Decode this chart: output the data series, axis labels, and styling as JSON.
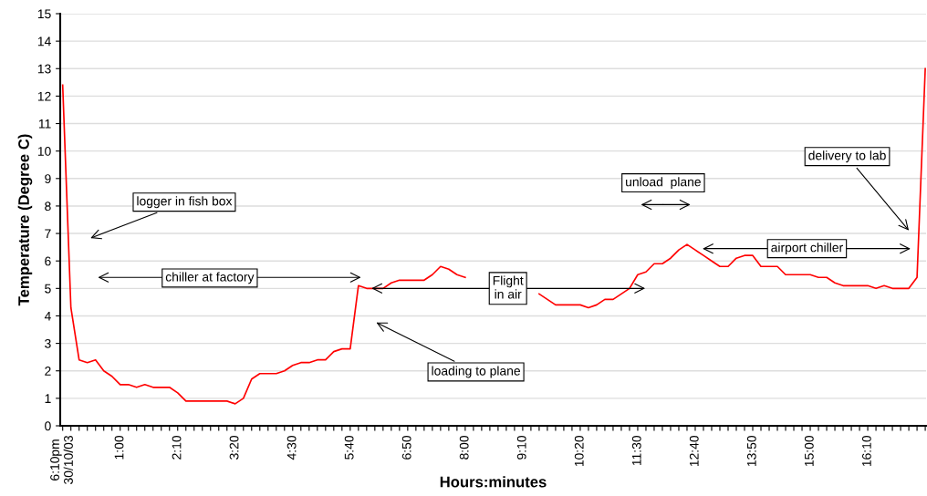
{
  "chart_data": {
    "type": "line",
    "xlabel": "Hours:minutes",
    "ylabel": "Temperature (Degree C)",
    "categories": [
      "6:10pm\n30/10/03",
      null,
      null,
      null,
      null,
      null,
      null,
      "1:00",
      null,
      null,
      null,
      null,
      null,
      null,
      "2:10",
      null,
      null,
      null,
      null,
      null,
      null,
      "3:20",
      null,
      null,
      null,
      null,
      null,
      null,
      "4:30",
      null,
      null,
      null,
      null,
      null,
      null,
      "5:40",
      null,
      null,
      null,
      null,
      null,
      null,
      "6:50",
      null,
      null,
      null,
      null,
      null,
      null,
      "8:00",
      null,
      null,
      null,
      null,
      null,
      null,
      "9:10",
      null,
      null,
      null,
      null,
      null,
      null,
      "10:20",
      null,
      null,
      null,
      null,
      null,
      null,
      "11:30",
      null,
      null,
      null,
      null,
      null,
      null,
      "12:40",
      null,
      null,
      null,
      null,
      null,
      null,
      "13:50",
      null,
      null,
      null,
      null,
      null,
      null,
      "15:00",
      null,
      null,
      null,
      null,
      null,
      null,
      "16:10",
      null,
      null,
      null,
      null,
      null,
      null,
      null
    ],
    "series": [
      {
        "color": "#ff0000",
        "values": [
          12.4,
          4.3,
          2.4,
          2.3,
          2.4,
          2.0,
          1.8,
          1.5,
          1.5,
          1.4,
          1.5,
          1.4,
          1.4,
          1.4,
          1.2,
          0.9,
          0.9,
          0.9,
          0.9,
          0.9,
          0.9,
          0.8,
          1.0,
          1.7,
          1.9,
          1.9,
          1.9,
          2.0,
          2.2,
          2.3,
          2.3,
          2.4,
          2.4,
          2.7,
          2.8,
          2.8,
          5.1,
          5.0,
          5.0,
          5.0,
          5.2,
          5.3,
          5.3,
          5.3,
          5.3,
          5.5,
          5.8,
          5.7,
          5.5,
          5.4,
          null,
          null,
          null,
          null,
          null,
          null,
          null,
          null,
          4.8,
          4.6,
          4.4,
          4.4,
          4.4,
          4.4,
          4.3,
          4.4,
          4.6,
          4.6,
          4.8,
          5.0,
          5.5,
          5.6,
          5.9,
          5.9,
          6.1,
          6.4,
          6.6,
          6.4,
          6.2,
          6.0,
          5.8,
          5.8,
          6.1,
          6.2,
          6.2,
          5.8,
          5.8,
          5.8,
          5.5,
          5.5,
          5.5,
          5.5,
          5.4,
          5.4,
          5.2,
          5.1,
          5.1,
          5.1,
          5.1,
          5.0,
          5.1,
          5.0,
          5.0,
          5.0,
          5.4,
          13.0
        ]
      }
    ],
    "ylim": [
      0,
      15
    ],
    "yticks": [
      0,
      1,
      2,
      3,
      4,
      5,
      6,
      7,
      8,
      9,
      10,
      11,
      12,
      13,
      14,
      15
    ],
    "grid": "y",
    "marker": "none",
    "line_style": "solid",
    "annotations": [
      "logger in fish box",
      "chiller at factory",
      "loading to plane",
      {
        "text": "Flight\nin air",
        "y": 5.0
      },
      "unload  plane",
      "airport chiller",
      "delivery to lab"
    ]
  }
}
